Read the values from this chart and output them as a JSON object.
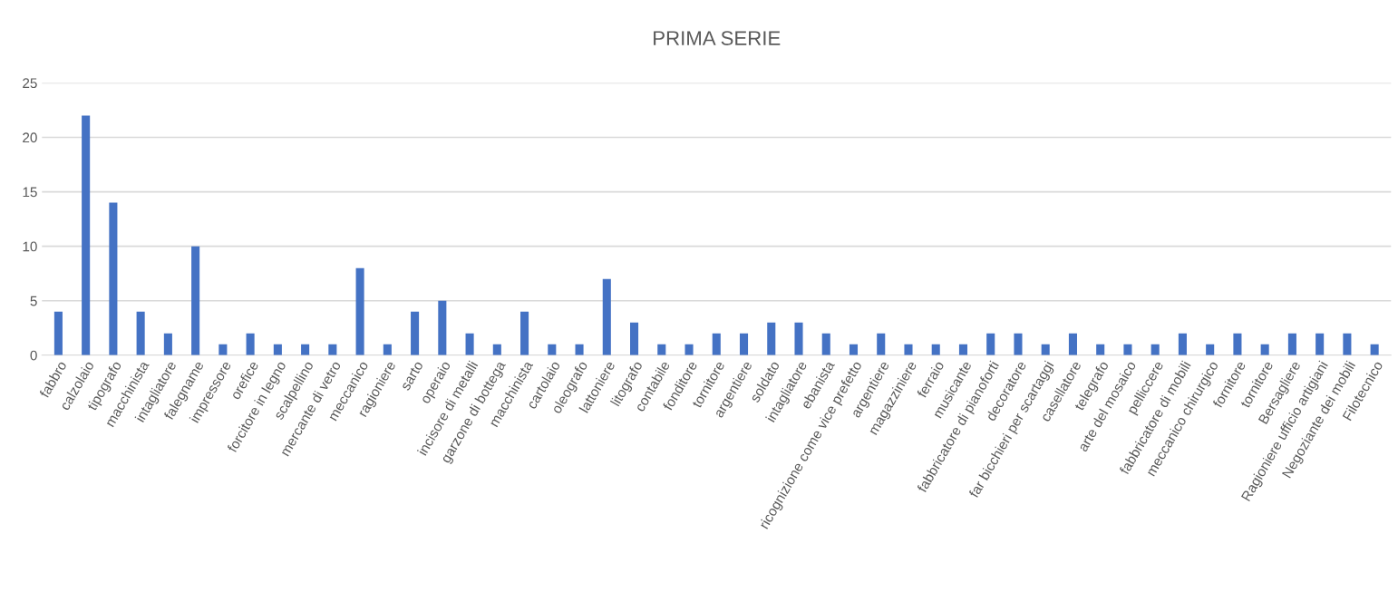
{
  "chart_data": {
    "type": "bar",
    "title": "PRIMA SERIE",
    "categories": [
      "fabbro",
      "calzolaio",
      "tipografo",
      "macchinista",
      "intagliatore",
      "falegname",
      "impressore",
      "orefice",
      "forcitore in legno",
      "scalpellino",
      "mercante di vetro",
      "meccanico",
      "ragioniere",
      "sarto",
      "operaio",
      "incisore di metalli",
      "garzone di bottega",
      "macchinista",
      "cartolaio",
      "oleografo",
      "lattoniere",
      "litografo",
      "contabile",
      "fonditore",
      "tornitore",
      "argentiere",
      "soldato",
      "intagliatore",
      "ebanista",
      "ricognizione come vice prefetto",
      "argentiere",
      "magazziniere",
      "ferraio",
      "musicante",
      "fabbricatore di pianoforti",
      "decoratore",
      "far bicchieri per scartaggi",
      "casellatore",
      "telegrafo",
      "arte del mosaico",
      "pelliccere",
      "fabbricatore di mobili",
      "meccanico chirurgico",
      "fornitore",
      "tornitore",
      "Bersagliere",
      "Ragioniere ufficio artigiani",
      "Negoziante dei mobili",
      "Filotecnico"
    ],
    "values": [
      4,
      22,
      14,
      4,
      2,
      10,
      1,
      2,
      1,
      1,
      1,
      8,
      1,
      4,
      5,
      2,
      1,
      4,
      1,
      1,
      7,
      3,
      1,
      1,
      2,
      2,
      3,
      3,
      2,
      1,
      2,
      1,
      1,
      1,
      2,
      2,
      1,
      2,
      1,
      1,
      1,
      2,
      1,
      2,
      1,
      2,
      2,
      2,
      1
    ],
    "color": "#4472c4",
    "ylim": [
      0,
      25
    ],
    "yticks": [
      0,
      5,
      10,
      15,
      20,
      25
    ],
    "grid": "y"
  }
}
